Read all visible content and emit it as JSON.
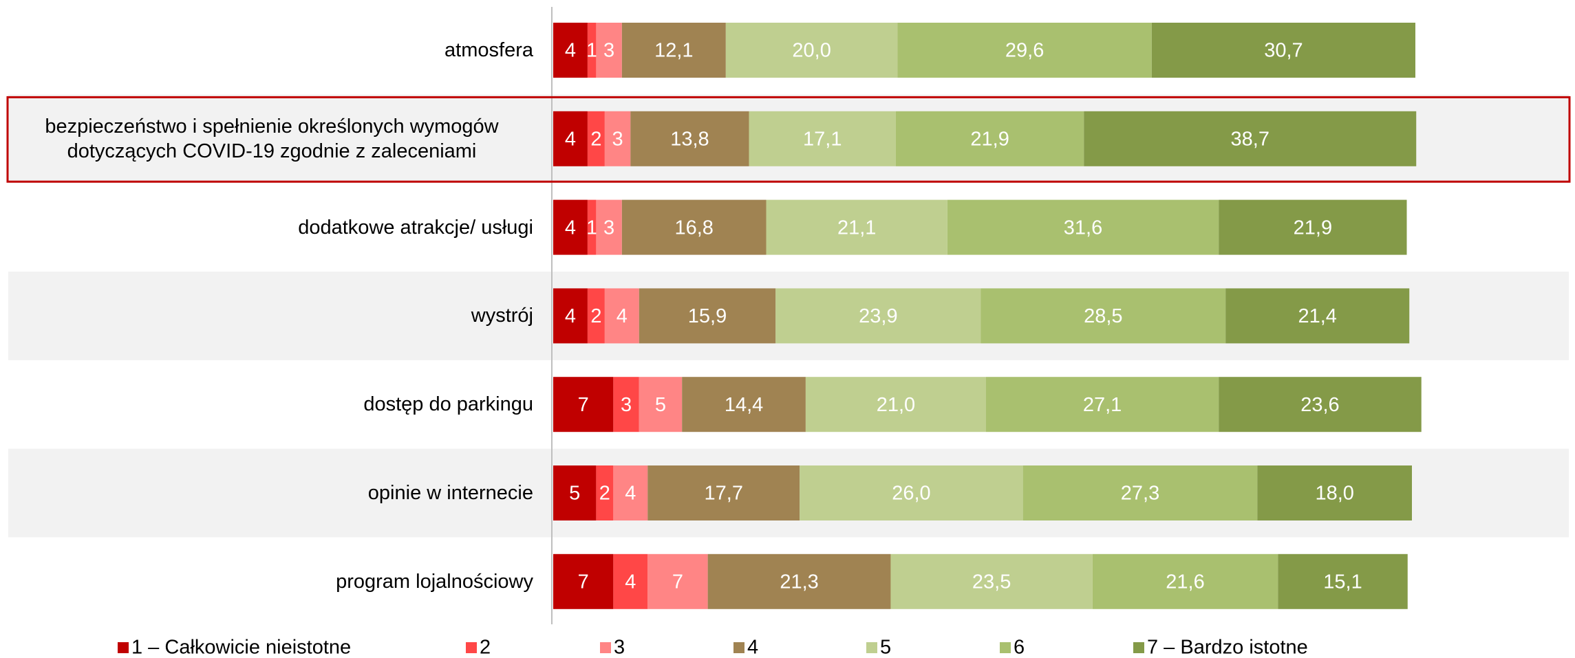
{
  "chart_data": {
    "type": "stacked-bar-horizontal",
    "categories": [
      "atmosfera",
      "bezpieczeństwo i spełnienie określonych wymogów dotyczących COVID-19 zgodnie z zaleceniami",
      "dodatkowe atrakcje/ usługi",
      "wystrój",
      "dostęp do parkingu",
      "opinie w internecie",
      "program lojalnościowy"
    ],
    "xlim": [
      0,
      100
    ],
    "series": [
      {
        "name": "1 – Całkowicie nieistotne",
        "color": "#c00000",
        "values": [
          4,
          4,
          4,
          4,
          7,
          5,
          7
        ]
      },
      {
        "name": "2",
        "color": "#ff4747",
        "values": [
          1,
          2,
          1,
          2,
          3,
          2,
          4
        ]
      },
      {
        "name": "3",
        "color": "#ff8585",
        "values": [
          3,
          3,
          3,
          4,
          5,
          4,
          7
        ]
      },
      {
        "name": "4",
        "color": "#a08352",
        "values": [
          12.1,
          13.8,
          16.8,
          15.9,
          14.4,
          17.7,
          21.3
        ],
        "value_labels": [
          "12,1",
          "13,8",
          "16,8",
          "15,9",
          "14,4",
          "17,7",
          "21,3"
        ]
      },
      {
        "name": "5",
        "color": "#bfcf90",
        "values": [
          20.0,
          17.1,
          21.1,
          23.9,
          21.0,
          26.0,
          23.5
        ],
        "value_labels": [
          "20,0",
          "17,1",
          "21,1",
          "23,9",
          "21,0",
          "26,0",
          "23,5"
        ]
      },
      {
        "name": "6",
        "color": "#a9c06f",
        "values": [
          29.6,
          21.9,
          31.6,
          28.5,
          27.1,
          27.3,
          21.6
        ],
        "value_labels": [
          "29,6",
          "21,9",
          "31,6",
          "28,5",
          "27,1",
          "27,3",
          "21,6"
        ]
      },
      {
        "name": "7 – Bardzo istotne",
        "color": "#849a48",
        "values": [
          30.7,
          38.7,
          21.9,
          21.4,
          23.6,
          18.0,
          15.1
        ],
        "value_labels": [
          "30,7",
          "38,7",
          "21,9",
          "21,4",
          "23,6",
          "18,0",
          "15,1"
        ]
      }
    ]
  }
}
